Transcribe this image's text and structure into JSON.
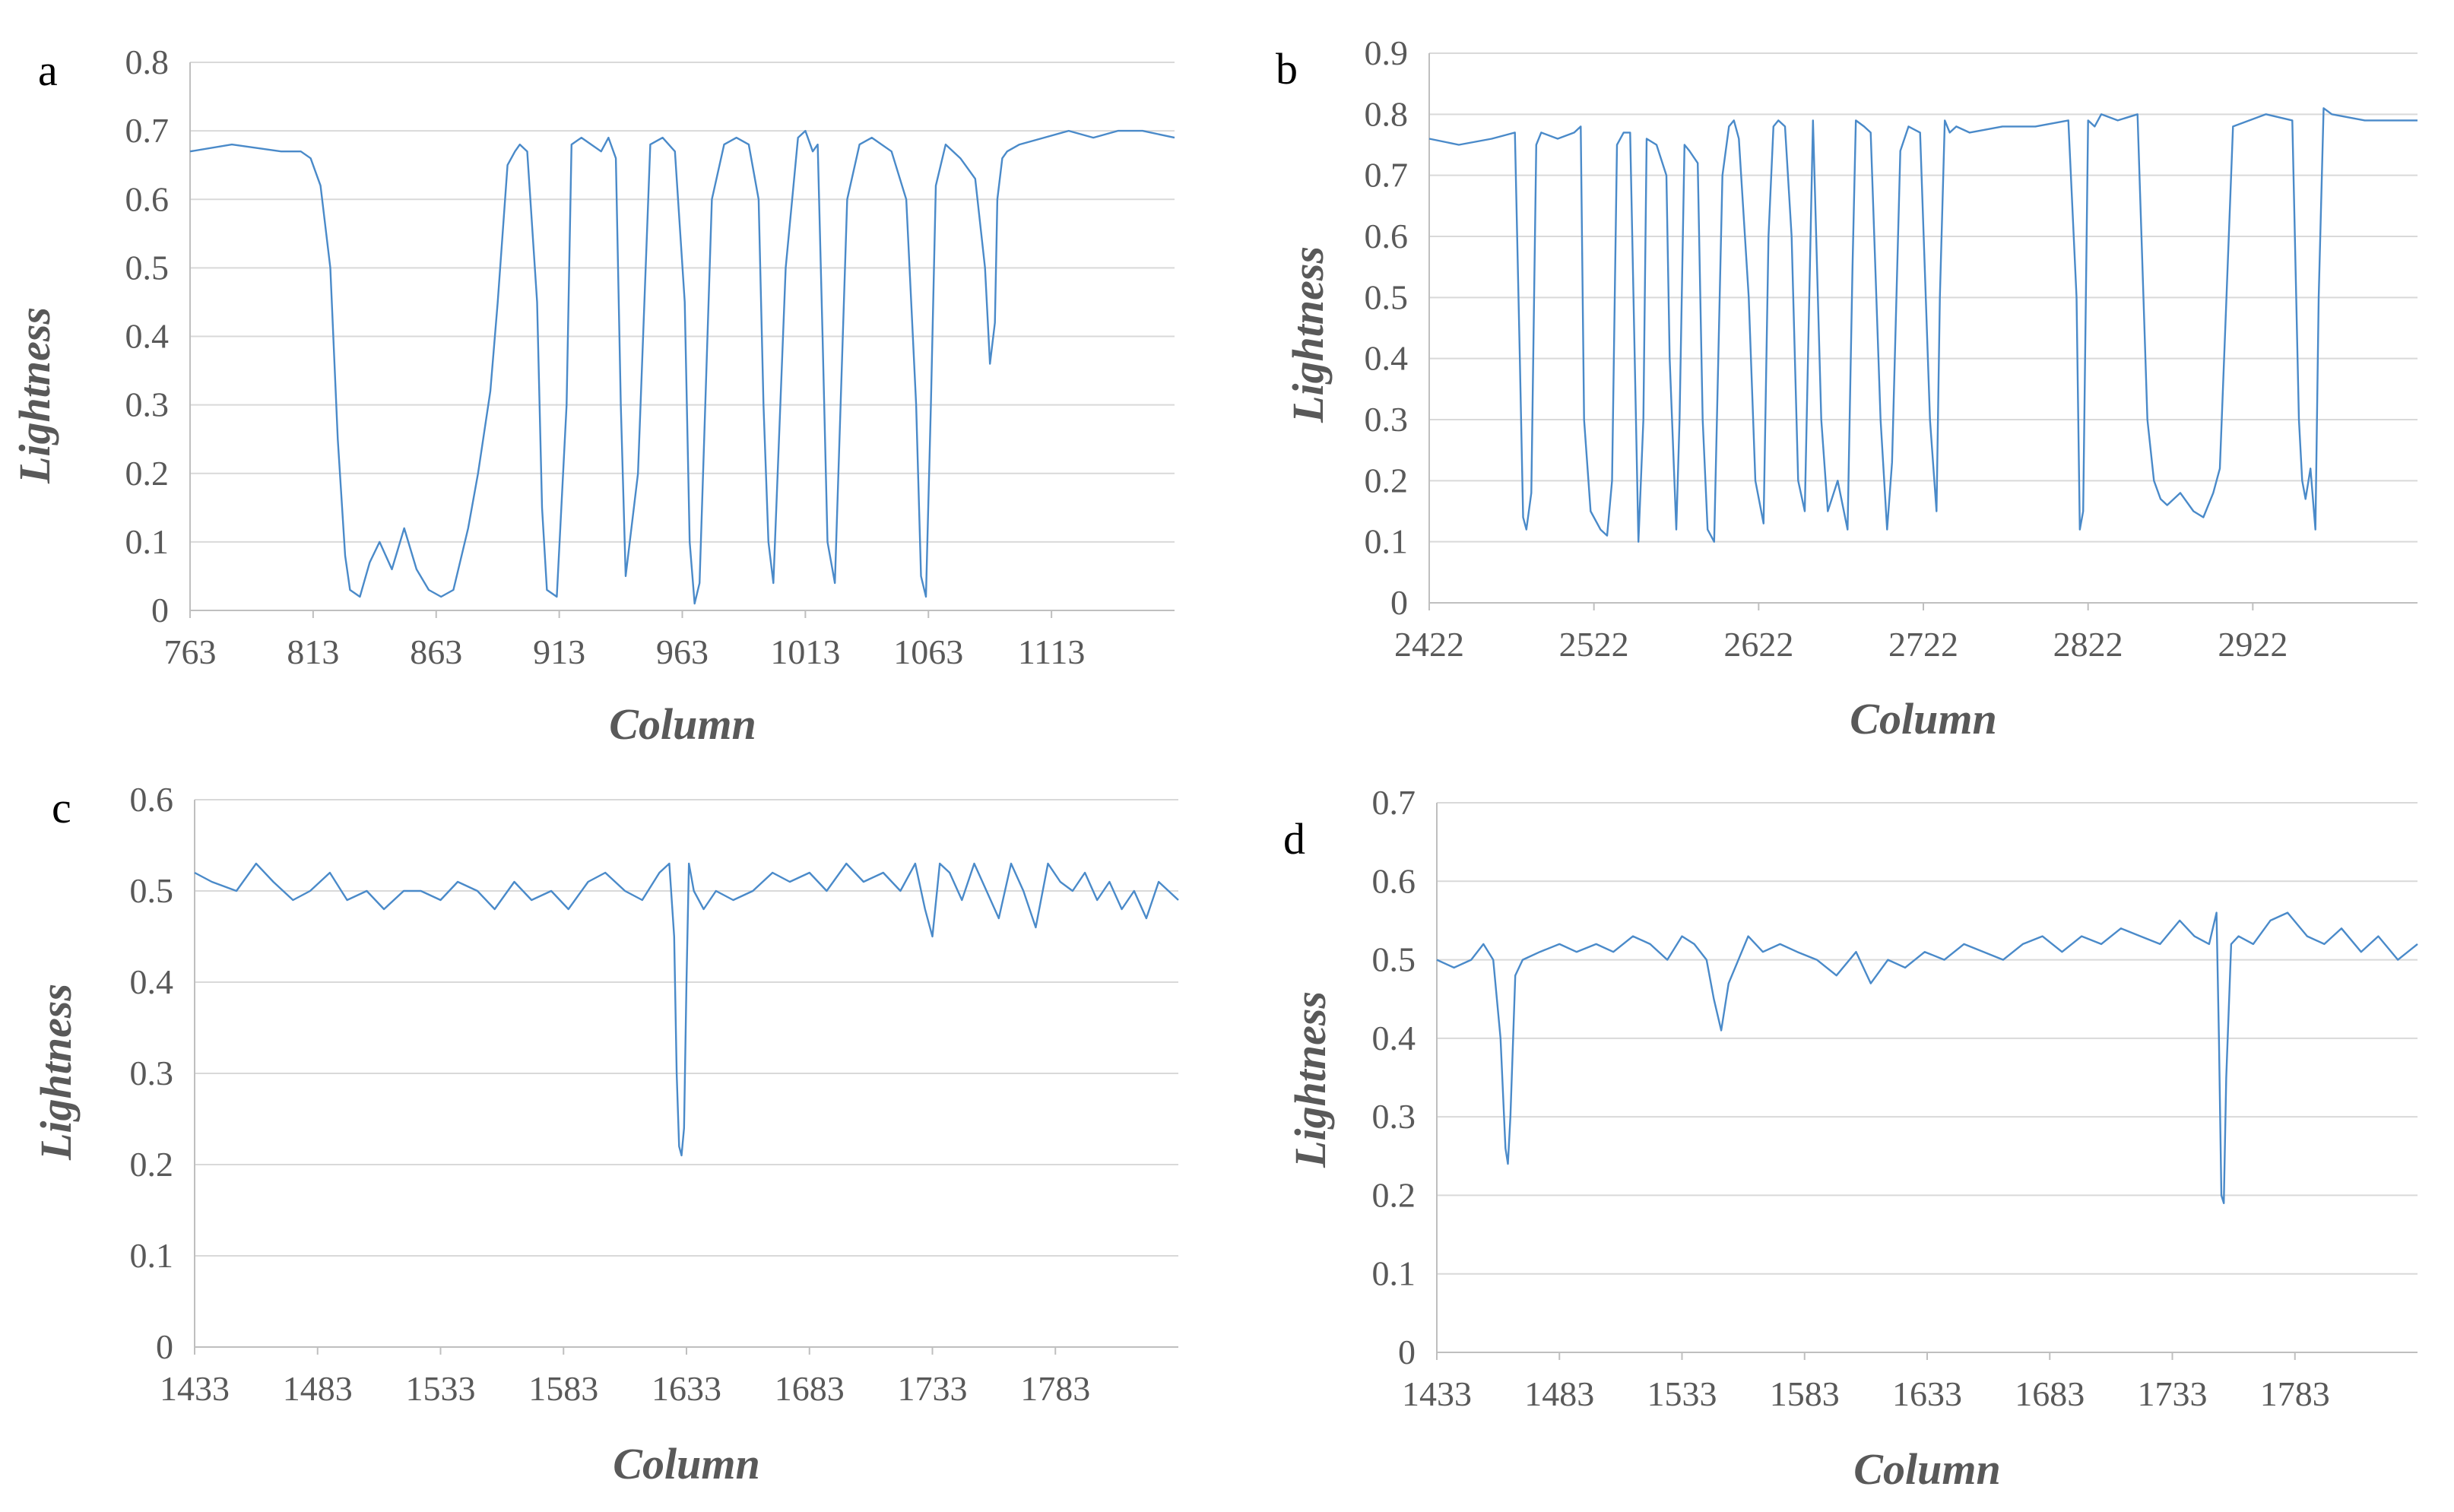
{
  "chart_data": [
    {
      "panel": "a",
      "type": "line",
      "title": "",
      "xlabel": "Column",
      "ylabel": "Lightness",
      "xlim": [
        763,
        1163
      ],
      "ylim": [
        0,
        0.8
      ],
      "x_ticks": [
        763,
        813,
        863,
        913,
        963,
        1013,
        1063,
        1113
      ],
      "y_ticks": [
        "0",
        "0.1",
        "0.2",
        "0.3",
        "0.4",
        "0.5",
        "0.6",
        "0.7",
        "0.8"
      ],
      "grid": true,
      "color": "#4a8ac9",
      "series": [
        {
          "name": "Lightness",
          "x": [
            763,
            780,
            800,
            808,
            812,
            816,
            820,
            823,
            826,
            828,
            832,
            836,
            840,
            845,
            850,
            855,
            860,
            865,
            870,
            872,
            876,
            880,
            885,
            888,
            892,
            895,
            897,
            900,
            904,
            906,
            908,
            912,
            916,
            918,
            922,
            926,
            930,
            933,
            936,
            938,
            940,
            945,
            950,
            955,
            960,
            964,
            966,
            968,
            970,
            975,
            980,
            985,
            990,
            994,
            996,
            998,
            1000,
            1005,
            1010,
            1013,
            1016,
            1018,
            1020,
            1022,
            1025,
            1030,
            1035,
            1040,
            1048,
            1054,
            1058,
            1060,
            1062,
            1064,
            1066,
            1070,
            1076,
            1082,
            1086,
            1088,
            1090,
            1091,
            1093,
            1095,
            1100,
            1110,
            1120,
            1130,
            1140,
            1150,
            1163
          ],
          "y": [
            0.67,
            0.68,
            0.67,
            0.67,
            0.66,
            0.62,
            0.5,
            0.25,
            0.08,
            0.03,
            0.02,
            0.07,
            0.1,
            0.06,
            0.12,
            0.06,
            0.03,
            0.02,
            0.03,
            0.06,
            0.12,
            0.2,
            0.32,
            0.45,
            0.65,
            0.67,
            0.68,
            0.67,
            0.45,
            0.15,
            0.03,
            0.02,
            0.3,
            0.68,
            0.69,
            0.68,
            0.67,
            0.69,
            0.66,
            0.3,
            0.05,
            0.2,
            0.68,
            0.69,
            0.67,
            0.45,
            0.1,
            0.01,
            0.04,
            0.6,
            0.68,
            0.69,
            0.68,
            0.6,
            0.3,
            0.1,
            0.04,
            0.5,
            0.69,
            0.7,
            0.67,
            0.68,
            0.4,
            0.1,
            0.04,
            0.6,
            0.68,
            0.69,
            0.67,
            0.6,
            0.3,
            0.05,
            0.02,
            0.3,
            0.62,
            0.68,
            0.66,
            0.63,
            0.5,
            0.36,
            0.42,
            0.6,
            0.66,
            0.67,
            0.68,
            0.69,
            0.7,
            0.69,
            0.7,
            0.7,
            0.69
          ]
        }
      ]
    },
    {
      "panel": "b",
      "type": "line",
      "title": "",
      "xlabel": "Column",
      "ylabel": "Lightness",
      "xlim": [
        2422,
        3022
      ],
      "ylim": [
        0,
        0.9
      ],
      "x_ticks": [
        2422,
        2522,
        2622,
        2722,
        2822,
        2922
      ],
      "y_ticks": [
        "0",
        "0.1",
        "0.2",
        "0.3",
        "0.4",
        "0.5",
        "0.6",
        "0.7",
        "0.8",
        "0.9"
      ],
      "grid": true,
      "color": "#4a8ac9",
      "series": [
        {
          "name": "Lightness",
          "x": [
            2422,
            2440,
            2460,
            2474,
            2477,
            2479,
            2481,
            2484,
            2487,
            2490,
            2500,
            2510,
            2514,
            2516,
            2520,
            2526,
            2530,
            2533,
            2536,
            2540,
            2544,
            2546,
            2549,
            2552,
            2554,
            2560,
            2566,
            2568,
            2572,
            2574,
            2577,
            2580,
            2585,
            2588,
            2591,
            2595,
            2600,
            2604,
            2607,
            2610,
            2616,
            2620,
            2625,
            2628,
            2631,
            2634,
            2638,
            2642,
            2646,
            2650,
            2655,
            2660,
            2664,
            2670,
            2676,
            2679,
            2681,
            2686,
            2690,
            2696,
            2700,
            2703,
            2708,
            2713,
            2720,
            2726,
            2730,
            2732,
            2735,
            2738,
            2742,
            2750,
            2770,
            2790,
            2810,
            2815,
            2817,
            2819,
            2822,
            2826,
            2830,
            2840,
            2852,
            2858,
            2862,
            2866,
            2870,
            2878,
            2886,
            2892,
            2898,
            2902,
            2906,
            2910,
            2930,
            2946,
            2950,
            2952,
            2954,
            2957,
            2960,
            2962,
            2965,
            2970,
            2990,
            3022
          ],
          "y": [
            0.76,
            0.75,
            0.76,
            0.77,
            0.4,
            0.14,
            0.12,
            0.18,
            0.75,
            0.77,
            0.76,
            0.77,
            0.78,
            0.3,
            0.15,
            0.12,
            0.11,
            0.2,
            0.75,
            0.77,
            0.77,
            0.5,
            0.1,
            0.3,
            0.76,
            0.75,
            0.7,
            0.4,
            0.12,
            0.3,
            0.75,
            0.74,
            0.72,
            0.3,
            0.12,
            0.1,
            0.7,
            0.78,
            0.79,
            0.76,
            0.5,
            0.2,
            0.13,
            0.6,
            0.78,
            0.79,
            0.78,
            0.6,
            0.2,
            0.15,
            0.79,
            0.3,
            0.15,
            0.2,
            0.12,
            0.55,
            0.79,
            0.78,
            0.77,
            0.3,
            0.12,
            0.23,
            0.74,
            0.78,
            0.77,
            0.3,
            0.15,
            0.5,
            0.79,
            0.77,
            0.78,
            0.77,
            0.78,
            0.78,
            0.79,
            0.5,
            0.12,
            0.15,
            0.79,
            0.78,
            0.8,
            0.79,
            0.8,
            0.3,
            0.2,
            0.17,
            0.16,
            0.18,
            0.15,
            0.14,
            0.18,
            0.22,
            0.5,
            0.78,
            0.8,
            0.79,
            0.3,
            0.2,
            0.17,
            0.22,
            0.12,
            0.5,
            0.81,
            0.8,
            0.79,
            0.79
          ]
        }
      ]
    },
    {
      "panel": "c",
      "type": "line",
      "title": "",
      "xlabel": "Column",
      "ylabel": "Lightness",
      "xlim": [
        1433,
        1833
      ],
      "ylim": [
        0,
        0.6
      ],
      "x_ticks": [
        1433,
        1483,
        1533,
        1583,
        1633,
        1683,
        1733,
        1783
      ],
      "y_ticks": [
        "0",
        "0.1",
        "0.2",
        "0.3",
        "0.4",
        "0.5",
        "0.6"
      ],
      "grid": true,
      "color": "#4a8ac9",
      "series": [
        {
          "name": "Lightness",
          "x": [
            1433,
            1440,
            1450,
            1458,
            1465,
            1473,
            1480,
            1488,
            1495,
            1503,
            1510,
            1518,
            1525,
            1533,
            1540,
            1548,
            1555,
            1563,
            1570,
            1578,
            1585,
            1593,
            1600,
            1608,
            1615,
            1622,
            1626,
            1628,
            1629,
            1630,
            1631,
            1632,
            1633,
            1634,
            1636,
            1640,
            1645,
            1652,
            1660,
            1668,
            1675,
            1683,
            1690,
            1698,
            1705,
            1713,
            1720,
            1726,
            1730,
            1733,
            1736,
            1740,
            1745,
            1750,
            1755,
            1760,
            1765,
            1770,
            1775,
            1780,
            1785,
            1790,
            1795,
            1800,
            1805,
            1810,
            1815,
            1820,
            1825,
            1833
          ],
          "y": [
            0.52,
            0.51,
            0.5,
            0.53,
            0.51,
            0.49,
            0.5,
            0.52,
            0.49,
            0.5,
            0.48,
            0.5,
            0.5,
            0.49,
            0.51,
            0.5,
            0.48,
            0.51,
            0.49,
            0.5,
            0.48,
            0.51,
            0.52,
            0.5,
            0.49,
            0.52,
            0.53,
            0.45,
            0.3,
            0.22,
            0.21,
            0.24,
            0.4,
            0.53,
            0.5,
            0.48,
            0.5,
            0.49,
            0.5,
            0.52,
            0.51,
            0.52,
            0.5,
            0.53,
            0.51,
            0.52,
            0.5,
            0.53,
            0.48,
            0.45,
            0.53,
            0.52,
            0.49,
            0.53,
            0.5,
            0.47,
            0.53,
            0.5,
            0.46,
            0.53,
            0.51,
            0.5,
            0.52,
            0.49,
            0.51,
            0.48,
            0.5,
            0.47,
            0.51,
            0.49
          ]
        }
      ]
    },
    {
      "panel": "d",
      "type": "line",
      "title": "",
      "xlabel": "Column",
      "ylabel": "Lightness",
      "xlim": [
        1433,
        1833
      ],
      "ylim": [
        0,
        0.7
      ],
      "x_ticks": [
        1433,
        1483,
        1533,
        1583,
        1633,
        1683,
        1733,
        1783
      ],
      "y_ticks": [
        "0",
        "0.1",
        "0.2",
        "0.3",
        "0.4",
        "0.5",
        "0.6",
        "0.7"
      ],
      "grid": true,
      "color": "#4a8ac9",
      "series": [
        {
          "name": "Lightness",
          "x": [
            1433,
            1440,
            1447,
            1452,
            1456,
            1459,
            1461,
            1462,
            1463,
            1465,
            1468,
            1475,
            1483,
            1490,
            1498,
            1505,
            1513,
            1520,
            1527,
            1533,
            1538,
            1543,
            1546,
            1549,
            1552,
            1556,
            1560,
            1566,
            1573,
            1580,
            1588,
            1596,
            1604,
            1610,
            1617,
            1624,
            1632,
            1640,
            1648,
            1656,
            1664,
            1672,
            1680,
            1688,
            1696,
            1704,
            1712,
            1720,
            1728,
            1736,
            1742,
            1748,
            1751,
            1752,
            1753,
            1754,
            1755,
            1757,
            1760,
            1766,
            1773,
            1780,
            1788,
            1795,
            1802,
            1810,
            1817,
            1825,
            1833
          ],
          "y": [
            0.5,
            0.49,
            0.5,
            0.52,
            0.5,
            0.4,
            0.26,
            0.24,
            0.3,
            0.48,
            0.5,
            0.51,
            0.52,
            0.51,
            0.52,
            0.51,
            0.53,
            0.52,
            0.5,
            0.53,
            0.52,
            0.5,
            0.45,
            0.41,
            0.47,
            0.5,
            0.53,
            0.51,
            0.52,
            0.51,
            0.5,
            0.48,
            0.51,
            0.47,
            0.5,
            0.49,
            0.51,
            0.5,
            0.52,
            0.51,
            0.5,
            0.52,
            0.53,
            0.51,
            0.53,
            0.52,
            0.54,
            0.53,
            0.52,
            0.55,
            0.53,
            0.52,
            0.56,
            0.4,
            0.2,
            0.19,
            0.35,
            0.52,
            0.53,
            0.52,
            0.55,
            0.56,
            0.53,
            0.52,
            0.54,
            0.51,
            0.53,
            0.5,
            0.52
          ]
        }
      ]
    }
  ]
}
